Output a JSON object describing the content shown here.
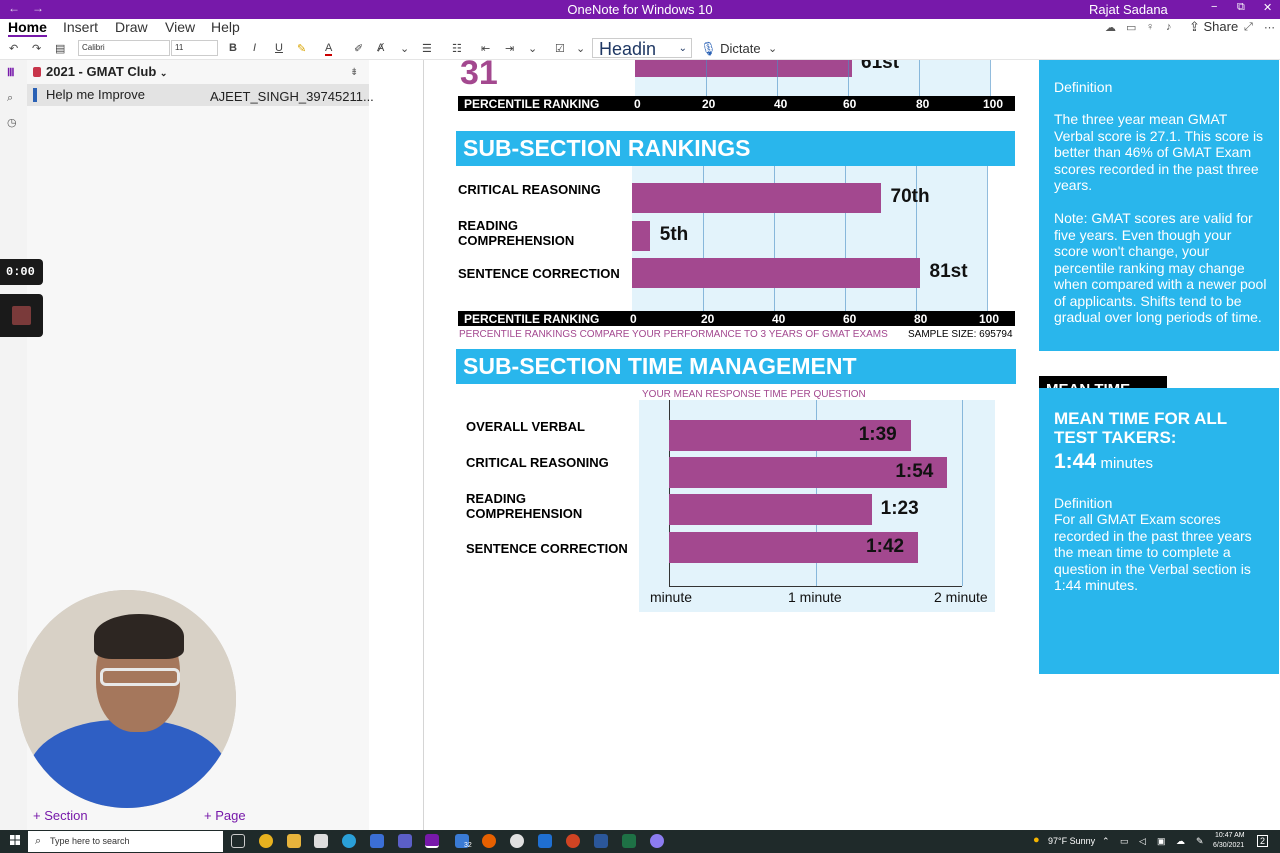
{
  "window": {
    "title": "OneNote for Windows 10",
    "user": "Rajat Sadana",
    "back_glyph": "←",
    "forward_glyph": "→",
    "minimize_glyph": "−",
    "restore_glyph": "⧉",
    "close_glyph": "✕"
  },
  "menu": {
    "tabs": [
      "Home",
      "Insert",
      "Draw",
      "View",
      "Help"
    ],
    "share_label": "Share"
  },
  "ribbon": {
    "font_name": "Calibri",
    "font_size": "11",
    "bold": "B",
    "italic": "I",
    "underline": "U",
    "style": "Headin",
    "dictate_label": "Dictate"
  },
  "notebook": {
    "name": "2021 - GMAT Club",
    "section": "Help me Improve",
    "page": "AJEET_SINGH_39745211...",
    "add_section": "Section",
    "add_page": "Page"
  },
  "recorder": {
    "time": "0:00"
  },
  "report": {
    "overall_rank_number": "31",
    "overall_ordinal": "61st",
    "overall_value": 61,
    "percentile_label": "PERCENTILE RANKING",
    "ticks": [
      "0",
      "20",
      "40",
      "60",
      "80",
      "100"
    ],
    "subsection_title": "SUB-SECTION RANKINGS",
    "subsections": [
      {
        "label": "CRITICAL REASONING",
        "value": 70,
        "ordinal": "70th"
      },
      {
        "label": "READING COMPREHENSION",
        "value": 5,
        "ordinal": "5th"
      },
      {
        "label": "SENTENCE CORRECTION",
        "value": 81,
        "ordinal": "81st"
      }
    ],
    "compare_note": "PERCENTILE RANKINGS COMPARE YOUR PERFORMANCE TO 3 YEARS OF GMAT EXAMS",
    "sample_size": "SAMPLE SIZE: 695794",
    "time_title": "SUB-SECTION TIME MANAGEMENT",
    "time_subtitle": "YOUR MEAN RESPONSE TIME PER QUESTION",
    "times": [
      {
        "label": "OVERALL VERBAL",
        "time": "1:39",
        "seconds": 99
      },
      {
        "label": "CRITICAL REASONING",
        "time": "1:54",
        "seconds": 114
      },
      {
        "label": "READING COMPREHENSION",
        "time": "1:23",
        "seconds": 83
      },
      {
        "label": "SENTENCE CORRECTION",
        "time": "1:42",
        "seconds": 102
      }
    ],
    "time_axis": [
      "minute",
      "1 minute",
      "2 minute"
    ]
  },
  "side": {
    "definition_heading": "Definition",
    "verbal_text": "The three year mean GMAT Verbal  score is 27.1. This score is better than 46% of GMAT Exam scores recorded in the past three years.",
    "note_text": "Note:  GMAT scores are valid for five years. Even though your score won't change, your percentile ranking may change when compared with a newer pool of applicants.  Shifts tend to be gradual over long periods of time.",
    "mean_time_tab": "MEAN TIME",
    "mean_time_heading": "MEAN TIME FOR ALL TEST TAKERS:",
    "mean_time_value": "1:44",
    "mean_time_unit": "minutes",
    "mean_definition_heading": "Definition",
    "mean_definition_text": "For all GMAT Exam scores recorded in the past three years the mean time to complete a question in the Verbal section is 1:44 minutes."
  },
  "taskbar": {
    "search_placeholder": "Type here to search",
    "weather": "97°F  Sunny",
    "time": "10:47 AM",
    "date": "6/30/2021",
    "badge": "32",
    "notifications": "2"
  },
  "colors": {
    "onenote_purple": "#7719aa",
    "report_blue": "#29b6ec",
    "bar_magenta": "#a3488f"
  }
}
